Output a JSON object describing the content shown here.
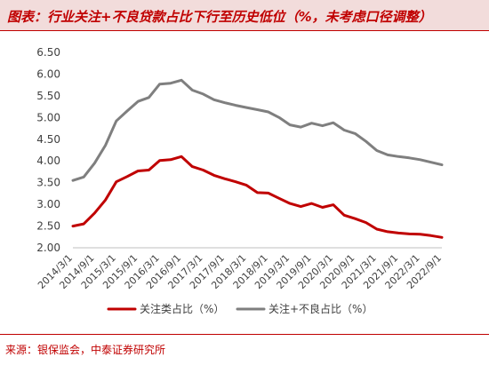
{
  "header": {
    "title": "图表：行业关注+不良贷款占比下行至历史低位（%，未考虑口径调整）"
  },
  "footer": {
    "source": "来源：银保监会，中泰证券研究所"
  },
  "chart_data": {
    "type": "line",
    "title": "图表：行业关注+不良贷款占比下行至历史低位（%，未考虑口径调整）",
    "xlabel": "",
    "ylabel": "",
    "ylim": [
      2.0,
      6.5
    ],
    "yticks": [
      "2.00",
      "2.50",
      "3.00",
      "3.50",
      "4.00",
      "4.50",
      "5.00",
      "5.50",
      "6.00",
      "6.50"
    ],
    "xticklabels": [
      "2014/3/1",
      "2014/9/1",
      "2015/3/1",
      "2015/9/1",
      "2016/3/1",
      "2016/9/1",
      "2017/3/1",
      "2017/9/1",
      "2018/3/1",
      "2018/9/1",
      "2019/3/1",
      "2019/9/1",
      "2020/3/1",
      "2020/9/1",
      "2021/3/1",
      "2021/9/1",
      "2022/3/1",
      "2022/9/1"
    ],
    "x": [
      "2014/3/1",
      "2014/6/1",
      "2014/9/1",
      "2014/12/1",
      "2015/3/1",
      "2015/6/1",
      "2015/9/1",
      "2015/12/1",
      "2016/3/1",
      "2016/6/1",
      "2016/9/1",
      "2016/12/1",
      "2017/3/1",
      "2017/6/1",
      "2017/9/1",
      "2017/12/1",
      "2018/3/1",
      "2018/6/1",
      "2018/9/1",
      "2018/12/1",
      "2019/3/1",
      "2019/6/1",
      "2019/9/1",
      "2019/12/1",
      "2020/3/1",
      "2020/6/1",
      "2020/9/1",
      "2020/12/1",
      "2021/3/1",
      "2021/6/1",
      "2021/9/1",
      "2021/12/1",
      "2022/3/1",
      "2022/6/1",
      "2022/9/1"
    ],
    "grid": false,
    "legend": "bottom",
    "series": [
      {
        "name": "关注类占比（%）",
        "color": "#c00000",
        "values": [
          2.5,
          2.55,
          2.8,
          3.1,
          3.52,
          3.64,
          3.77,
          3.79,
          4.01,
          4.03,
          4.1,
          3.87,
          3.79,
          3.67,
          3.59,
          3.52,
          3.44,
          3.27,
          3.26,
          3.14,
          3.02,
          2.95,
          3.02,
          2.93,
          2.99,
          2.75,
          2.67,
          2.58,
          2.43,
          2.37,
          2.34,
          2.32,
          2.31,
          2.28,
          2.24
        ]
      },
      {
        "name": "关注+不良占比（%）",
        "color": "#7f7f7f",
        "values": [
          3.55,
          3.63,
          3.95,
          4.36,
          4.92,
          5.15,
          5.37,
          5.46,
          5.77,
          5.79,
          5.86,
          5.63,
          5.54,
          5.41,
          5.34,
          5.28,
          5.23,
          5.18,
          5.13,
          5.0,
          4.83,
          4.78,
          4.87,
          4.81,
          4.88,
          4.71,
          4.63,
          4.45,
          4.24,
          4.14,
          4.1,
          4.07,
          4.03,
          3.97,
          3.91
        ]
      }
    ]
  }
}
